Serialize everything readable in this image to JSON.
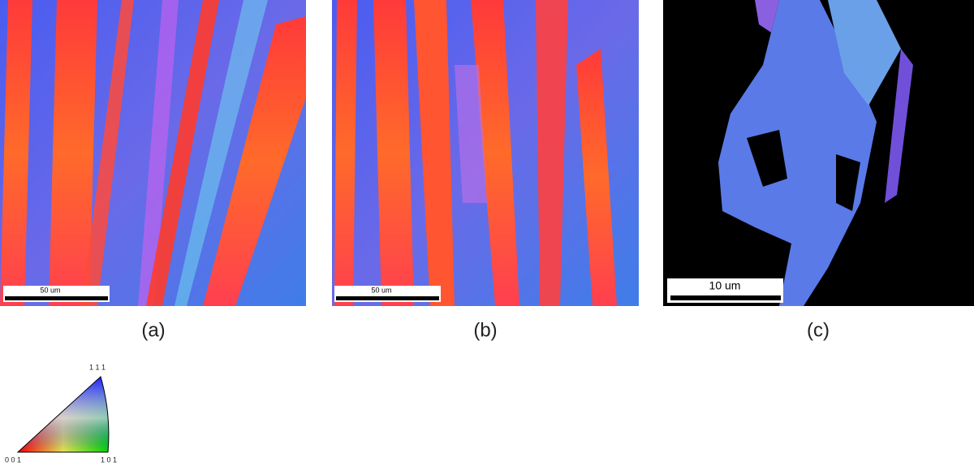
{
  "panels": [
    {
      "label": "(a)",
      "scale_bar": "50 um"
    },
    {
      "label": "(b)",
      "scale_bar": "50 um"
    },
    {
      "label": "(c)",
      "scale_bar": "10 um"
    }
  ],
  "legend": {
    "top": "1 1 1",
    "bottom_left": "0 0 1",
    "bottom_right": "1 0 1"
  }
}
